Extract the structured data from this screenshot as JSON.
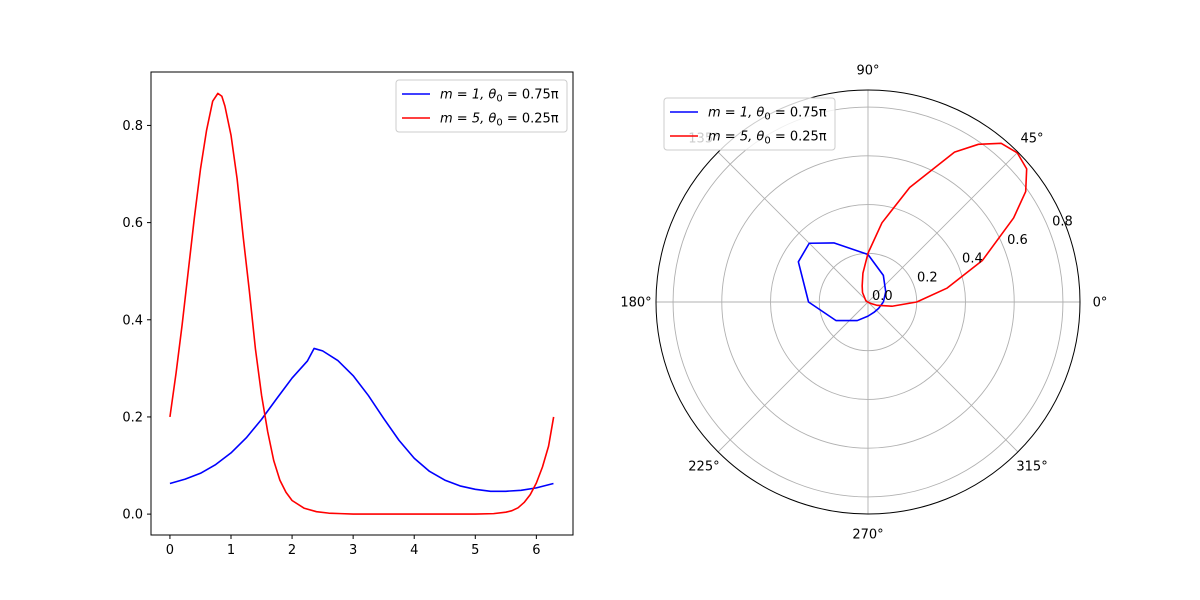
{
  "chart_data": [
    {
      "type": "line",
      "title": "",
      "xlabel": "",
      "ylabel": "",
      "xlim": [
        -0.31,
        6.6
      ],
      "ylim": [
        -0.043,
        0.91
      ],
      "xticks": [
        0,
        1,
        2,
        3,
        4,
        5,
        6
      ],
      "xtick_labels": [
        "0",
        "1",
        "2",
        "3",
        "4",
        "5",
        "6"
      ],
      "yticks": [
        0.0,
        0.2,
        0.4,
        0.6,
        0.8
      ],
      "ytick_labels": [
        "0.0",
        "0.2",
        "0.4",
        "0.6",
        "0.8"
      ],
      "grid": false,
      "legend_position": "top-right",
      "series": [
        {
          "legend": {
            "pre": "m = 1, θ",
            "sub": "0",
            "post": " = 0.75π"
          },
          "color": "#0000ff",
          "x": [
            0.0,
            0.25,
            0.5,
            0.75,
            1.0,
            1.25,
            1.5,
            1.75,
            2.0,
            2.25,
            2.36,
            2.5,
            2.75,
            3.0,
            3.25,
            3.5,
            3.75,
            4.0,
            4.25,
            4.5,
            4.75,
            5.0,
            5.25,
            5.5,
            5.75,
            6.0,
            6.28
          ],
          "y": [
            0.063,
            0.072,
            0.084,
            0.102,
            0.126,
            0.157,
            0.195,
            0.238,
            0.28,
            0.315,
            0.341,
            0.336,
            0.316,
            0.285,
            0.244,
            0.197,
            0.152,
            0.115,
            0.088,
            0.07,
            0.058,
            0.051,
            0.047,
            0.047,
            0.049,
            0.054,
            0.063
          ]
        },
        {
          "legend": {
            "pre": "m = 5, θ",
            "sub": "0",
            "post": " = 0.25π"
          },
          "color": "#ff0000",
          "x": [
            0.0,
            0.1,
            0.2,
            0.3,
            0.4,
            0.5,
            0.6,
            0.7,
            0.785,
            0.85,
            0.9,
            1.0,
            1.1,
            1.2,
            1.3,
            1.4,
            1.5,
            1.6,
            1.7,
            1.8,
            1.9,
            2.0,
            2.2,
            2.4,
            2.6,
            2.8,
            3.0,
            3.5,
            4.0,
            4.5,
            5.0,
            5.3,
            5.5,
            5.6,
            5.7,
            5.8,
            5.9,
            6.0,
            6.1,
            6.2,
            6.283
          ],
          "y": [
            0.2,
            0.29,
            0.39,
            0.5,
            0.61,
            0.71,
            0.79,
            0.85,
            0.866,
            0.86,
            0.84,
            0.78,
            0.69,
            0.57,
            0.46,
            0.34,
            0.245,
            0.17,
            0.11,
            0.07,
            0.045,
            0.028,
            0.012,
            0.005,
            0.002,
            0.001,
            0.0,
            0.0,
            0.0,
            0.0,
            0.0,
            0.001,
            0.004,
            0.007,
            0.013,
            0.024,
            0.04,
            0.064,
            0.097,
            0.14,
            0.2
          ]
        }
      ]
    },
    {
      "type": "polar-line",
      "title": "",
      "rlim": [
        0,
        0.87
      ],
      "rticks": [
        0.0,
        0.2,
        0.4,
        0.6,
        0.8
      ],
      "rtick_labels": [
        "0.0",
        "0.2",
        "0.4",
        "0.6",
        "0.8"
      ],
      "angle_ticks_deg": [
        0,
        45,
        90,
        135,
        180,
        225,
        270,
        315
      ],
      "angle_tick_labels": [
        "0°",
        "45°",
        "90°",
        "135°",
        "180°",
        "225°",
        "270°",
        "315°"
      ],
      "grid": true,
      "legend_position": "upper-left",
      "series": [
        {
          "legend": {
            "pre": "m = 1, θ",
            "sub": "0",
            "post": " = 0.75π"
          },
          "color": "#0000ff",
          "theta_deg": [
            0,
            30,
            60,
            90,
            120,
            135,
            150,
            180,
            210,
            240,
            270,
            300,
            330,
            360
          ],
          "r": [
            0.063,
            0.084,
            0.126,
            0.195,
            0.28,
            0.341,
            0.33,
            0.244,
            0.152,
            0.088,
            0.058,
            0.049,
            0.051,
            0.063
          ]
        },
        {
          "legend": {
            "pre": "m = 5, θ",
            "sub": "0",
            "post": " = 0.25π"
          },
          "color": "#ff0000",
          "theta_deg": [
            0,
            10,
            20,
            30,
            35,
            40,
            45,
            50,
            55,
            60,
            70,
            80,
            90,
            100,
            110,
            120,
            150,
            180,
            210,
            240,
            270,
            300,
            315,
            330,
            340,
            350,
            360
          ],
          "r": [
            0.2,
            0.33,
            0.5,
            0.69,
            0.79,
            0.85,
            0.866,
            0.85,
            0.79,
            0.71,
            0.5,
            0.33,
            0.2,
            0.12,
            0.07,
            0.045,
            0.01,
            0.002,
            0.0,
            0.0,
            0.0,
            0.0,
            0.001,
            0.01,
            0.04,
            0.1,
            0.2
          ]
        }
      ]
    }
  ]
}
